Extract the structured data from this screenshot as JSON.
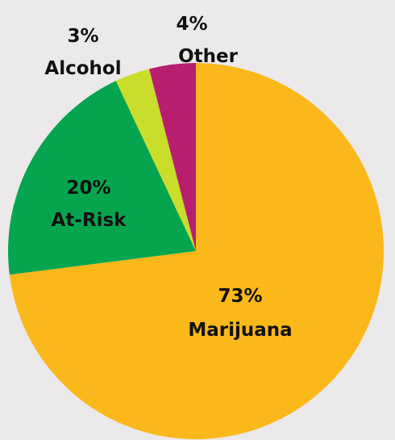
{
  "chart_data": {
    "type": "pie",
    "start": "12 o'clock",
    "direction": "clockwise",
    "slices": [
      {
        "label": "Marijuana",
        "value": 73,
        "value_text": "73%",
        "color": "#fbb81b"
      },
      {
        "label": "At-Risk",
        "value": 20,
        "value_text": "20%",
        "color": "#05a550"
      },
      {
        "label": "Alcohol",
        "value": 3,
        "value_text": "3%",
        "color": "#cadd2b"
      },
      {
        "label": "Other",
        "value": 4,
        "value_text": "4%",
        "color": "#b81e6e"
      }
    ]
  }
}
